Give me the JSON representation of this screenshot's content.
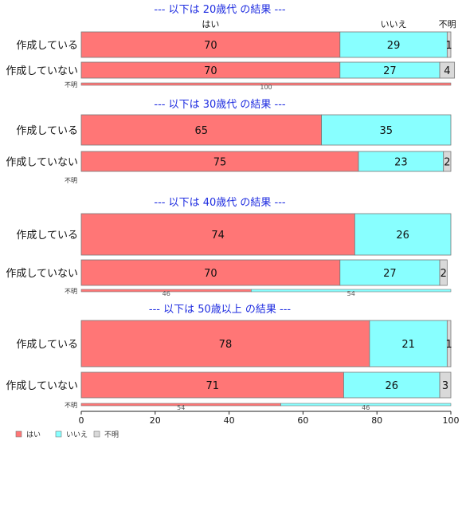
{
  "chart_data": {
    "type": "bar",
    "orientation": "horizontal",
    "stacked": true,
    "categories": [
      "はい",
      "いいえ",
      "不明"
    ],
    "colors": {
      "はい": "#ff7676",
      "いいえ": "#88ffff",
      "不明": "#d9d9d9"
    },
    "xlim": [
      0,
      100
    ],
    "xticks": [
      0,
      20,
      40,
      60,
      80,
      100
    ],
    "legend_placement": "bottom-left",
    "legend": [
      "はい",
      "いいえ",
      "不明"
    ],
    "groups": [
      {
        "title": "--- 以下は 20歳代 の結果 ---",
        "show_category_headers": true,
        "rows": [
          {
            "label": "作成している",
            "values": [
              70,
              29,
              1
            ]
          },
          {
            "label": "作成していない",
            "values": [
              70,
              27,
              4
            ]
          },
          {
            "label": "不明",
            "values": [
              100,
              0,
              0
            ]
          }
        ]
      },
      {
        "title": "--- 以下は 30歳代 の結果 ---",
        "show_category_headers": false,
        "rows": [
          {
            "label": "作成している",
            "values": [
              65,
              35,
              0
            ]
          },
          {
            "label": "作成していない",
            "values": [
              75,
              23,
              2
            ]
          },
          {
            "label": "不明",
            "values": [
              0,
              0,
              0
            ]
          }
        ]
      },
      {
        "title": "--- 以下は 40歳代 の結果 ---",
        "show_category_headers": false,
        "rows": [
          {
            "label": "作成している",
            "values": [
              74,
              26,
              0
            ]
          },
          {
            "label": "作成していない",
            "values": [
              70,
              27,
              2
            ]
          },
          {
            "label": "不明",
            "values": [
              46,
              54,
              0
            ]
          }
        ]
      },
      {
        "title": "--- 以下は 50歳以上 の結果 ---",
        "show_category_headers": false,
        "rows": [
          {
            "label": "作成している",
            "values": [
              78,
              21,
              1
            ]
          },
          {
            "label": "作成していない",
            "values": [
              71,
              26,
              3
            ]
          },
          {
            "label": "不明",
            "values": [
              54,
              46,
              0
            ]
          }
        ]
      }
    ]
  }
}
